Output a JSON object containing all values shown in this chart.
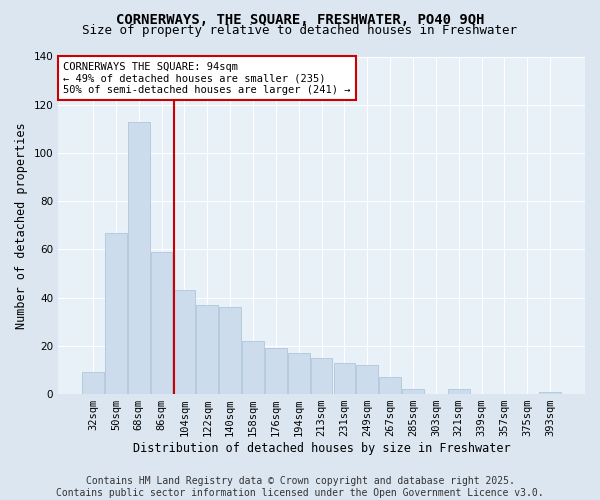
{
  "title_line1": "CORNERWAYS, THE SQUARE, FRESHWATER, PO40 9QH",
  "title_line2": "Size of property relative to detached houses in Freshwater",
  "xlabel": "Distribution of detached houses by size in Freshwater",
  "ylabel": "Number of detached properties",
  "categories": [
    "32sqm",
    "50sqm",
    "68sqm",
    "86sqm",
    "104sqm",
    "122sqm",
    "140sqm",
    "158sqm",
    "176sqm",
    "194sqm",
    "213sqm",
    "231sqm",
    "249sqm",
    "267sqm",
    "285sqm",
    "303sqm",
    "321sqm",
    "339sqm",
    "357sqm",
    "375sqm",
    "393sqm"
  ],
  "values": [
    9,
    67,
    113,
    59,
    43,
    37,
    36,
    22,
    19,
    17,
    15,
    13,
    12,
    7,
    2,
    0,
    2,
    0,
    0,
    0,
    1
  ],
  "bar_color": "#ccdcec",
  "bar_edge_color": "#a8c0d4",
  "vline_x": 3.55,
  "vline_color": "#cc0000",
  "annotation_title": "CORNERWAYS THE SQUARE: 94sqm",
  "annotation_line2": "← 49% of detached houses are smaller (235)",
  "annotation_line3": "50% of semi-detached houses are larger (241) →",
  "annotation_box_facecolor": "#ffffff",
  "annotation_box_edge": "#cc0000",
  "footer_line1": "Contains HM Land Registry data © Crown copyright and database right 2025.",
  "footer_line2": "Contains public sector information licensed under the Open Government Licence v3.0.",
  "ylim": [
    0,
    140
  ],
  "yticks": [
    0,
    20,
    40,
    60,
    80,
    100,
    120,
    140
  ],
  "background_color": "#dce6f0",
  "plot_bg_color": "#e8f0f8",
  "grid_color": "#ffffff",
  "title_fontsize": 10,
  "subtitle_fontsize": 9,
  "axis_label_fontsize": 8.5,
  "tick_fontsize": 7.5,
  "annotation_fontsize": 7.5,
  "footer_fontsize": 7
}
